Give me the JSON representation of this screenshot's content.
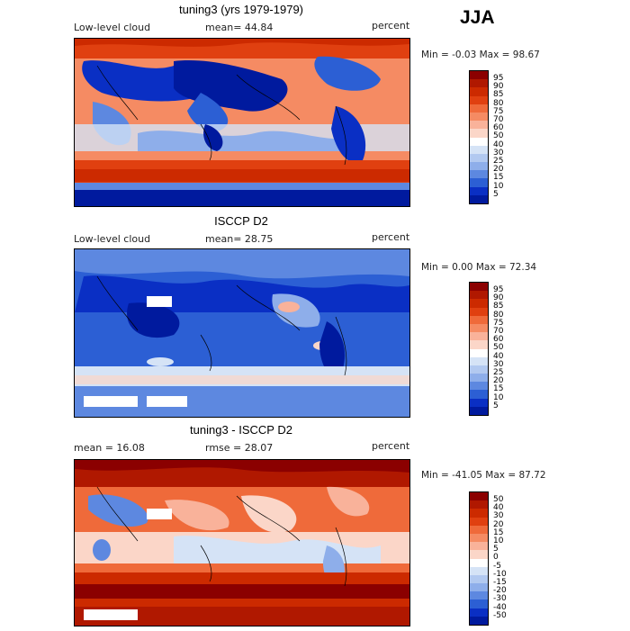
{
  "season": "JJA",
  "panels": [
    {
      "title": "tuning3 (yrs 1979-1979)",
      "left": "Low-level cloud",
      "middle": "mean=  44.84",
      "right": "percent",
      "minmax": "Min =  -0.03 Max =  98.67",
      "ticks": [
        "95",
        "90",
        "85",
        "80",
        "75",
        "70",
        "60",
        "50",
        "40",
        "30",
        "25",
        "20",
        "15",
        "10",
        "5"
      ],
      "colors": [
        "#8b0000",
        "#b01800",
        "#cc2a00",
        "#e04010",
        "#ef6a3a",
        "#f58b63",
        "#f9b29a",
        "#fbd6c8",
        "#ffffff",
        "#d5e3f6",
        "#b2c9f0",
        "#8eaeea",
        "#5d88e0",
        "#2c5fd4",
        "#0a2fc4",
        "#001a9e"
      ]
    },
    {
      "title": "ISCCP D2",
      "left": "Low-level cloud",
      "middle": "mean=  28.75",
      "right": "percent",
      "minmax": "Min =   0.00 Max =  72.34",
      "ticks": [
        "95",
        "90",
        "85",
        "80",
        "75",
        "70",
        "60",
        "50",
        "40",
        "30",
        "25",
        "20",
        "15",
        "10",
        "5"
      ],
      "colors": [
        "#8b0000",
        "#b01800",
        "#cc2a00",
        "#e04010",
        "#ef6a3a",
        "#f58b63",
        "#f9b29a",
        "#fbd6c8",
        "#ffffff",
        "#d5e3f6",
        "#b2c9f0",
        "#8eaeea",
        "#5d88e0",
        "#2c5fd4",
        "#0a2fc4",
        "#001a9e"
      ]
    },
    {
      "title": "tuning3 - ISCCP D2",
      "left": "mean =   16.08",
      "middle": "rmse =   28.07",
      "right": "percent",
      "minmax": "Min = -41.05 Max =  87.72",
      "ticks": [
        "50",
        "40",
        "30",
        "20",
        "15",
        "10",
        "5",
        "0",
        "-5",
        "-10",
        "-15",
        "-20",
        "-30",
        "-40",
        "-50"
      ],
      "colors": [
        "#8b0000",
        "#b01800",
        "#cc2a00",
        "#e04010",
        "#ef6a3a",
        "#f58b63",
        "#f9b29a",
        "#fbd6c8",
        "#ffffff",
        "#d5e3f6",
        "#b2c9f0",
        "#8eaeea",
        "#5d88e0",
        "#2c5fd4",
        "#0a2fc4",
        "#001a9e"
      ]
    }
  ]
}
